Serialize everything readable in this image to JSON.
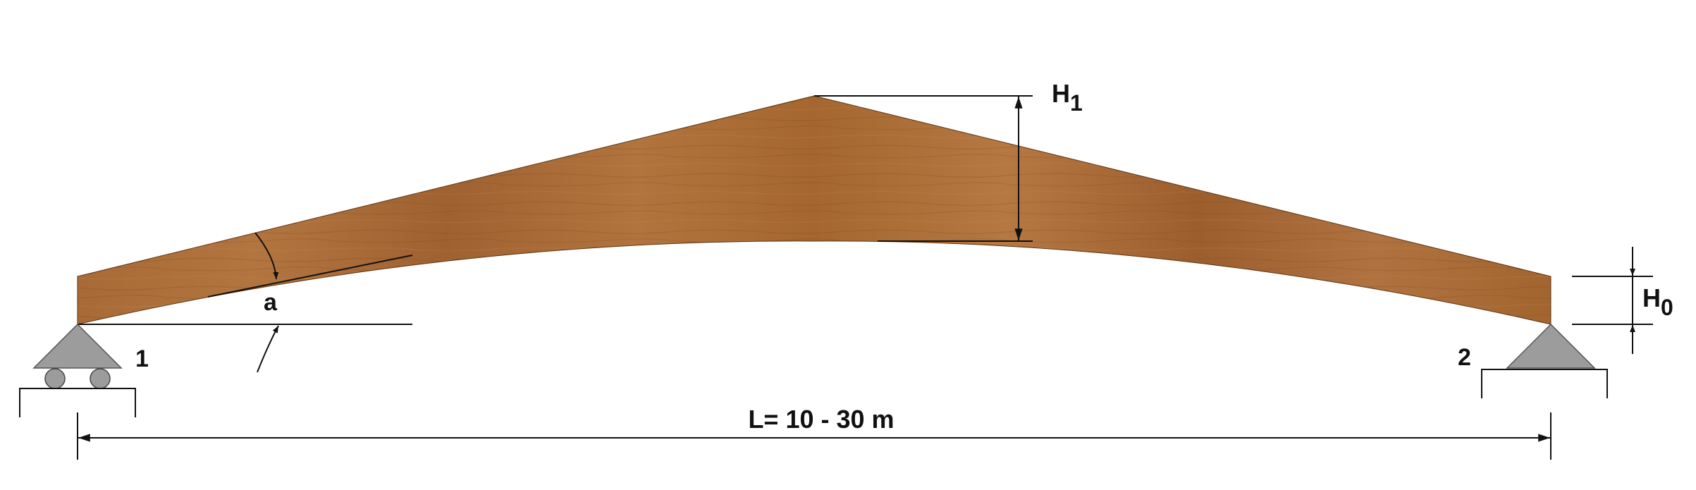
{
  "diagram": {
    "labels": {
      "h1_main": "H",
      "h1_sub": "1",
      "h0_main": "H",
      "h0_sub": "0",
      "angle": "a",
      "support_left": "1",
      "support_right": "2",
      "span": "L= 10 - 30 m"
    },
    "colors": {
      "wood_light": "#b7773f",
      "wood_mid": "#a0622f",
      "wood_dark": "#8a4f22",
      "support_fill": "#9a9a9a",
      "line": "#111111"
    }
  }
}
